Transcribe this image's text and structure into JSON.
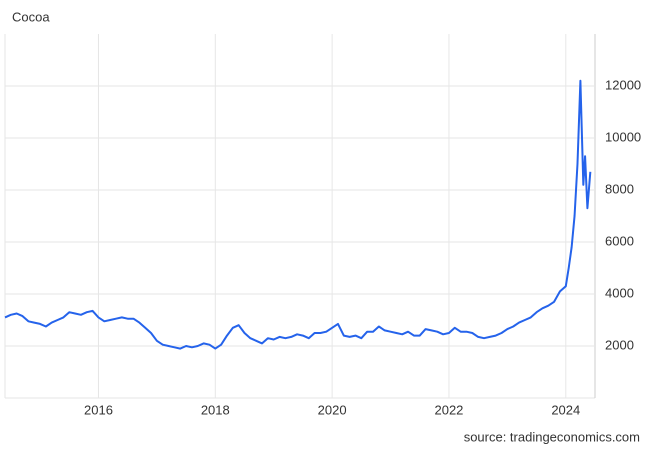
{
  "chart_data": {
    "type": "line",
    "title": "Cocoa",
    "source": "source: tradingeconomics.com",
    "x": [
      2014.4,
      2014.5,
      2014.6,
      2014.7,
      2014.8,
      2014.9,
      2015.0,
      2015.1,
      2015.2,
      2015.3,
      2015.4,
      2015.5,
      2015.6,
      2015.7,
      2015.8,
      2015.9,
      2016.0,
      2016.1,
      2016.2,
      2016.3,
      2016.4,
      2016.5,
      2016.6,
      2016.7,
      2016.8,
      2016.9,
      2017.0,
      2017.1,
      2017.2,
      2017.3,
      2017.4,
      2017.5,
      2017.6,
      2017.7,
      2017.8,
      2017.9,
      2018.0,
      2018.1,
      2018.2,
      2018.3,
      2018.4,
      2018.5,
      2018.6,
      2018.7,
      2018.8,
      2018.9,
      2019.0,
      2019.1,
      2019.2,
      2019.3,
      2019.4,
      2019.5,
      2019.6,
      2019.7,
      2019.8,
      2019.9,
      2020.0,
      2020.1,
      2020.2,
      2020.3,
      2020.4,
      2020.5,
      2020.6,
      2020.7,
      2020.8,
      2020.9,
      2021.0,
      2021.1,
      2021.2,
      2021.3,
      2021.4,
      2021.5,
      2021.6,
      2021.7,
      2021.8,
      2021.9,
      2022.0,
      2022.1,
      2022.2,
      2022.3,
      2022.4,
      2022.5,
      2022.6,
      2022.7,
      2022.8,
      2022.9,
      2023.0,
      2023.1,
      2023.2,
      2023.3,
      2023.4,
      2023.5,
      2023.6,
      2023.7,
      2023.8,
      2023.9,
      2024.0,
      2024.05,
      2024.1,
      2024.15,
      2024.2,
      2024.25,
      2024.3,
      2024.33,
      2024.37,
      2024.42
    ],
    "values": [
      3100,
      3200,
      3250,
      3150,
      2950,
      2900,
      2850,
      2750,
      2900,
      3000,
      3100,
      3300,
      3250,
      3200,
      3300,
      3350,
      3100,
      2950,
      3000,
      3050,
      3100,
      3050,
      3050,
      2900,
      2700,
      2500,
      2200,
      2050,
      2000,
      1950,
      1900,
      2000,
      1950,
      2000,
      2100,
      2050,
      1900,
      2050,
      2400,
      2700,
      2800,
      2500,
      2300,
      2200,
      2100,
      2300,
      2250,
      2350,
      2300,
      2350,
      2450,
      2400,
      2300,
      2500,
      2500,
      2550,
      2700,
      2850,
      2400,
      2350,
      2400,
      2300,
      2550,
      2550,
      2750,
      2600,
      2550,
      2500,
      2450,
      2550,
      2400,
      2400,
      2650,
      2600,
      2550,
      2450,
      2500,
      2700,
      2550,
      2550,
      2500,
      2350,
      2300,
      2350,
      2400,
      2500,
      2650,
      2750,
      2900,
      3000,
      3100,
      3300,
      3450,
      3550,
      3700,
      4100,
      4300,
      5000,
      5800,
      7000,
      9000,
      12200,
      8200,
      9300,
      7300,
      8700
    ],
    "color": "#2563eb",
    "xlim": [
      2014.4,
      2024.5
    ],
    "ylim": [
      0,
      14000
    ],
    "xticks": [
      2016,
      2018,
      2020,
      2022,
      2024
    ],
    "yticks": [
      2000,
      4000,
      6000,
      8000,
      10000,
      12000
    ],
    "grid": true
  }
}
